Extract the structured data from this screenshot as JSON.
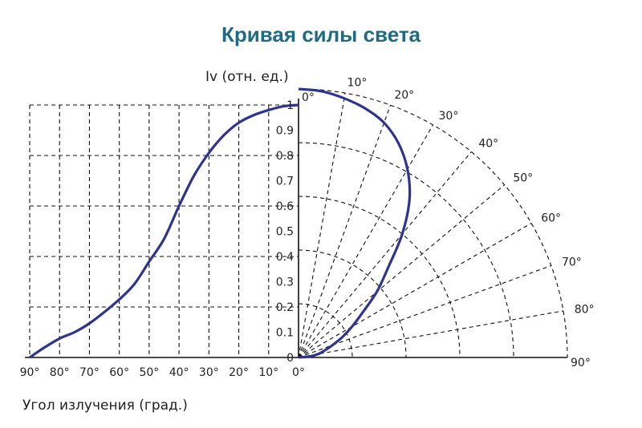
{
  "chart_data": {
    "type": "line",
    "title": "Кривая силы света",
    "xlabel": "Угол излучения (град.)",
    "ylabel": "Iv (отн. ед.)",
    "x_ticks": [
      "90°",
      "80°",
      "70°",
      "60°",
      "50°",
      "40°",
      "30°",
      "20°",
      "10°",
      "0°"
    ],
    "y_ticks": [
      "0",
      "0.1",
      "0.2",
      "0.3",
      "0.4",
      "0.5",
      "0.6",
      "0.7",
      "0.8",
      "0.9",
      "1"
    ],
    "polar_ticks": [
      "0°",
      "10°",
      "20°",
      "30°",
      "40°",
      "50°",
      "60°",
      "70°",
      "80°",
      "90°"
    ],
    "xlim": [
      90,
      0
    ],
    "ylim": [
      0,
      1
    ],
    "grid": true,
    "series": [
      {
        "color": "#2e3591",
        "x": [
          90,
          85,
          80,
          75,
          70,
          65,
          60,
          55,
          50,
          45,
          40,
          35,
          30,
          25,
          20,
          15,
          10,
          5,
          0
        ],
        "values": [
          0,
          0.04,
          0.075,
          0.1,
          0.135,
          0.18,
          0.23,
          0.29,
          0.38,
          0.47,
          0.6,
          0.72,
          0.81,
          0.88,
          0.93,
          0.96,
          0.98,
          0.995,
          1.0
        ]
      }
    ]
  }
}
